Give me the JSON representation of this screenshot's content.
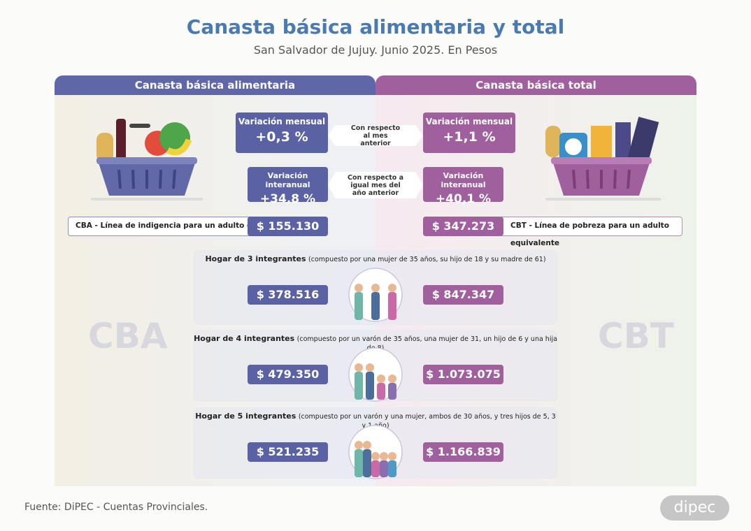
{
  "header": {
    "title": "Canasta básica alimentaria y total",
    "subtitle": "San Salvador de Jujuy. Junio 2025. En Pesos"
  },
  "columns": {
    "cba": {
      "heading": "Canasta básica alimentaria",
      "watermark": "CBA",
      "monthly": {
        "label": "Variación mensual",
        "value": "+0,3 %"
      },
      "yearly": {
        "label": "Variación interanual",
        "value": "+34,8 %"
      },
      "line": {
        "prefix": "CBA - Línea de ",
        "emphasis": "indigencia",
        "suffix": " para un adulto equivalente",
        "value": "$ 155.130"
      }
    },
    "cbt": {
      "heading": "Canasta básica total",
      "watermark": "CBT",
      "monthly": {
        "label": "Variación mensual",
        "value": "+1,1 %"
      },
      "yearly": {
        "label": "Variación interanual",
        "value": "+40,1 %"
      },
      "line": {
        "prefix": "CBT - Línea de ",
        "emphasis": "pobreza",
        "suffix": " para un adulto equivalente",
        "value": "$ 347.273"
      }
    }
  },
  "comparisons": [
    "Con respecto al mes anterior",
    "Con respecto a igual mes del año anterior"
  ],
  "households": [
    {
      "title": "Hogar de 3 integrantes",
      "detail": "(compuesto por una mujer de 35 años, su hijo de 18 y su madre de 61)",
      "cba": "$ 378.516",
      "cbt": "$ 847.347"
    },
    {
      "title": "Hogar de 4 integrantes",
      "detail": "(compuesto por un varón de 35 años, una mujer de 31, un hijo de 6 y una hija de 8)",
      "cba": "$ 479.350",
      "cbt": "$ 1.073.075"
    },
    {
      "title": "Hogar de 5 integrantes",
      "detail": "(compuesto por un varón y una mujer, ambos de 30 años, y tres hijos de 5, 3 y 1 año)",
      "cba": "$ 521.235",
      "cbt": "$ 1.166.839"
    }
  ],
  "footer": {
    "source": "Fuente: DiPEC - Cuentas Provinciales.",
    "logo": "dipec"
  }
}
